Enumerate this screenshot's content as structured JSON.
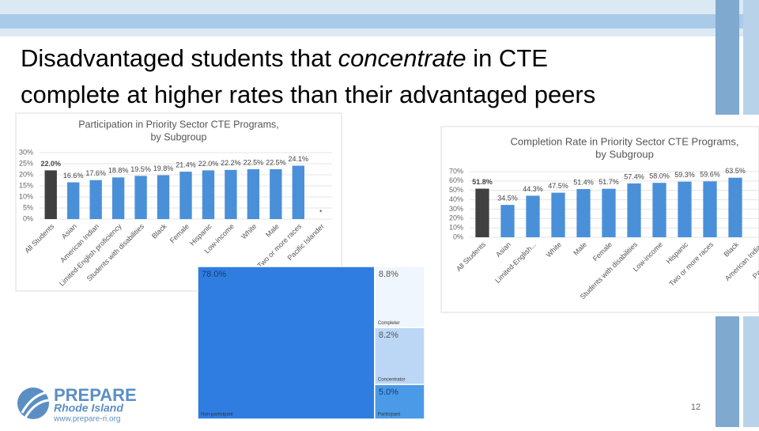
{
  "slide": {
    "title_parts": [
      "Disadvantaged students that",
      "concentrate",
      "in CTE",
      "complete at higher rates than their advantaged peers"
    ],
    "logo": [
      "PREPARE",
      "Rhode Island",
      "www.prepare-ri.org"
    ],
    "page_number": "12"
  },
  "chart_data": [
    {
      "type": "bar",
      "title": [
        "Participation in Priority Sector CTE Programs,",
        "by Subgroup"
      ],
      "categories": [
        "All Students",
        "Asian",
        "American Indian",
        "Limited-English proficiency",
        "Students with disabilities",
        "Black",
        "Female",
        "Hispanic",
        "Low-income",
        "White",
        "Male",
        "Two or more races",
        "Pacific Islander"
      ],
      "values": [
        22.0,
        16.6,
        17.6,
        18.8,
        19.5,
        19.8,
        21.4,
        22.0,
        22.2,
        22.5,
        22.5,
        24.1,
        null
      ],
      "value_labels": [
        "22.0%",
        "16.6%",
        "17.6%",
        "18.8%",
        "19.5%",
        "19.8%",
        "21.4%",
        "22.0%",
        "22.2%",
        "22.5%",
        "22.5%",
        "24.1%",
        "*"
      ],
      "colors": [
        "#404040",
        "#4a90d9",
        "#4a90d9",
        "#4a90d9",
        "#4a90d9",
        "#4a90d9",
        "#4a90d9",
        "#4a90d9",
        "#4a90d9",
        "#4a90d9",
        "#4a90d9",
        "#4a90d9",
        "#4a90d9"
      ],
      "ylim": [
        0,
        30
      ],
      "yticks": [
        {
          "value": 0,
          "label": "0%"
        },
        {
          "value": 5,
          "label": "5%"
        },
        {
          "value": 10,
          "label": "10%"
        },
        {
          "value": 15,
          "label": "15%"
        },
        {
          "value": 20,
          "label": "20%"
        },
        {
          "value": 25,
          "label": "25%"
        },
        {
          "value": 30,
          "label": "30%"
        }
      ]
    },
    {
      "type": "bar",
      "title": [
        "Completion Rate in Priority Sector CTE Programs,",
        "by Subgroup"
      ],
      "categories": [
        "All Students",
        "Asian",
        "Limited-English...",
        "White",
        "Male",
        "Female",
        "Students with disabilities",
        "Low-income",
        "Hispanic",
        "Two or more races",
        "Black",
        "American Indian",
        "Pacific Islander"
      ],
      "values": [
        51.8,
        34.5,
        44.3,
        47.5,
        51.4,
        51.7,
        57.4,
        58.0,
        59.3,
        59.6,
        63.5,
        null,
        null
      ],
      "value_labels": [
        "51.8%",
        "34.5%",
        "44.3%",
        "47.5%",
        "51.4%",
        "51.7%",
        "57.4%",
        "58.0%",
        "59.3%",
        "59.6%",
        "63.5%",
        null,
        null
      ],
      "colors": [
        "#404040",
        "#4a90d9",
        "#4a90d9",
        "#4a90d9",
        "#4a90d9",
        "#4a90d9",
        "#4a90d9",
        "#4a90d9",
        "#4a90d9",
        "#4a90d9",
        "#4a90d9",
        "#4a90d9",
        "#4a90d9"
      ],
      "ylim": [
        0,
        70
      ],
      "yticks": [
        {
          "value": 0,
          "label": "0%"
        },
        {
          "value": 10,
          "label": "10%"
        },
        {
          "value": 20,
          "label": "20%"
        },
        {
          "value": 30,
          "label": "30%"
        },
        {
          "value": 40,
          "label": "40%"
        },
        {
          "value": 50,
          "label": "50%"
        },
        {
          "value": 60,
          "label": "60%"
        },
        {
          "value": 70,
          "label": "70%"
        }
      ]
    },
    {
      "type": "treemap",
      "categories": [
        "Non-participant",
        "Completer",
        "Concentrator",
        "Participant"
      ],
      "values": [
        78.0,
        8.8,
        8.2,
        5.0
      ],
      "value_labels": [
        "78.0%",
        "8.8%",
        "8.2%",
        "5.0%"
      ],
      "colors": [
        "#2f7de1",
        "#f0f6fd",
        "#bcd7f5",
        "#4a9ae8"
      ]
    }
  ]
}
